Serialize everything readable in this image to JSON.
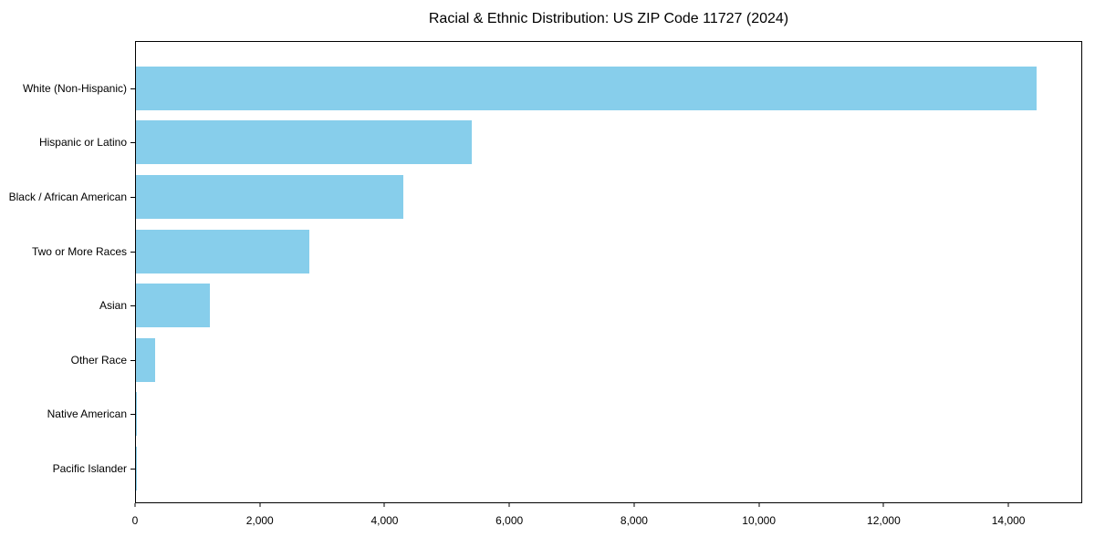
{
  "chart_data": {
    "type": "bar",
    "orientation": "horizontal",
    "title": "Racial & Ethnic Distribution: US ZIP Code 11727 (2024)",
    "categories": [
      "White (Non-Hispanic)",
      "Hispanic or Latino",
      "Black / African American",
      "Two or More Races",
      "Asian",
      "Other Race",
      "Native American",
      "Pacific Islander"
    ],
    "values": [
      14460,
      5400,
      4290,
      2780,
      1190,
      310,
      20,
      5
    ],
    "xlabel": "",
    "ylabel": "",
    "xlim": [
      0,
      15183
    ],
    "x_ticks": [
      0,
      2000,
      4000,
      6000,
      8000,
      10000,
      12000,
      14000
    ],
    "x_tick_labels": [
      "0",
      "2,000",
      "4,000",
      "6,000",
      "8,000",
      "10,000",
      "12,000",
      "14,000"
    ],
    "bar_color": "#87CEEB",
    "grid": false,
    "legend": "none"
  }
}
